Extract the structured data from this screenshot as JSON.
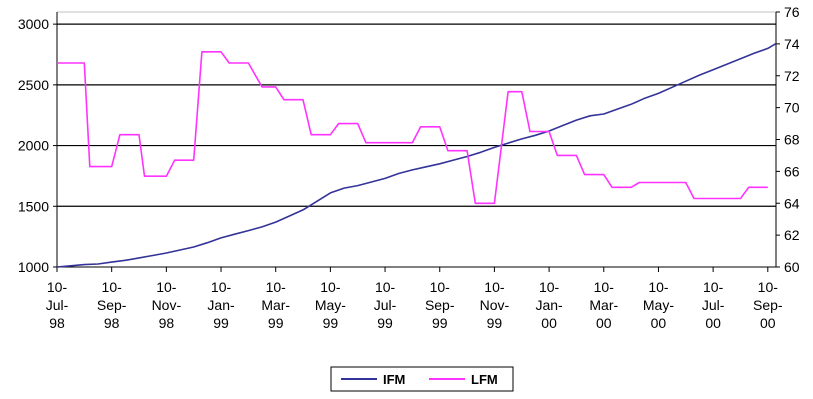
{
  "chart_data": {
    "type": "line",
    "title": "",
    "xlabel": "",
    "ylabel": "",
    "x_tick_labels": [
      [
        "10-",
        "Jul-",
        "98"
      ],
      [
        "10-",
        "Sep-",
        "98"
      ],
      [
        "10-",
        "Nov-",
        "98"
      ],
      [
        "10-",
        "Jan-",
        "99"
      ],
      [
        "10-",
        "Mar-",
        "99"
      ],
      [
        "10-",
        "May-",
        "99"
      ],
      [
        "10-",
        "Jul-",
        "99"
      ],
      [
        "10-",
        "Sep-",
        "99"
      ],
      [
        "10-",
        "Nov-",
        "99"
      ],
      [
        "10-",
        "Jan-",
        "00"
      ],
      [
        "10-",
        "Mar-",
        "00"
      ],
      [
        "10-",
        "May-",
        "00"
      ],
      [
        "10-",
        "Jul-",
        "00"
      ],
      [
        "10-",
        "Sep-",
        "00"
      ]
    ],
    "xlim": [
      0,
      26.3
    ],
    "y_left": {
      "lim": [
        1000,
        3100
      ],
      "ticks": [
        1000,
        1500,
        2000,
        2500,
        3000
      ]
    },
    "y_right": {
      "lim": [
        60,
        76
      ],
      "ticks": [
        60,
        62,
        64,
        66,
        68,
        70,
        72,
        74,
        76
      ]
    },
    "gridlines": [
      1500,
      2000,
      2500,
      3000
    ],
    "legend_position": "bottom",
    "series": [
      {
        "name": "IFM",
        "axis": "left",
        "color": "#333399",
        "x": [
          0,
          0.5,
          1,
          1.5,
          2,
          2.5,
          3,
          3.5,
          4,
          4.5,
          5,
          5.5,
          6,
          6.5,
          7,
          7.5,
          8,
          8.5,
          9,
          9.5,
          10,
          10.5,
          11,
          11.5,
          12,
          12.5,
          13,
          13.5,
          14,
          14.5,
          15,
          15.5,
          16,
          16.5,
          17,
          17.5,
          18,
          18.5,
          19,
          19.5,
          20,
          20.5,
          21,
          21.5,
          22,
          22.5,
          23,
          23.5,
          24,
          24.5,
          25,
          25.5,
          26,
          26.3
        ],
        "values": [
          1000,
          1010,
          1020,
          1025,
          1040,
          1055,
          1075,
          1095,
          1115,
          1140,
          1165,
          1200,
          1240,
          1270,
          1300,
          1330,
          1370,
          1420,
          1470,
          1540,
          1610,
          1650,
          1670,
          1700,
          1730,
          1770,
          1800,
          1825,
          1850,
          1880,
          1910,
          1945,
          1985,
          2020,
          2055,
          2085,
          2120,
          2165,
          2210,
          2245,
          2260,
          2300,
          2340,
          2390,
          2430,
          2480,
          2530,
          2580,
          2625,
          2670,
          2715,
          2760,
          2800,
          2840
        ]
      },
      {
        "name": "LFM",
        "axis": "right",
        "color": "#FF33FF",
        "x": [
          0,
          1,
          1.2,
          2,
          2.3,
          3,
          3.2,
          4,
          4.3,
          5,
          5.3,
          6,
          6.3,
          7,
          7.5,
          8,
          8.3,
          9,
          9.3,
          10,
          10.3,
          11,
          11.3,
          12,
          12.3,
          13,
          13.3,
          14,
          14.3,
          15,
          15.3,
          16,
          16.5,
          17,
          17.3,
          18,
          18.3,
          19,
          19.3,
          20,
          20.3,
          21,
          21.3,
          22,
          22.3,
          23,
          23.3,
          24,
          24.3,
          25,
          25.3,
          26
        ],
        "values": [
          72.8,
          72.8,
          66.3,
          66.3,
          68.3,
          68.3,
          65.7,
          65.7,
          66.7,
          66.7,
          73.5,
          73.5,
          72.8,
          72.8,
          71.3,
          71.3,
          70.5,
          70.5,
          68.3,
          68.3,
          69,
          69,
          67.8,
          67.8,
          67.8,
          67.8,
          68.8,
          68.8,
          67.3,
          67.3,
          64,
          64,
          71,
          71,
          68.5,
          68.5,
          67,
          67,
          65.8,
          65.8,
          65,
          65,
          65.3,
          65.3,
          65.3,
          65.3,
          64.3,
          64.3,
          64.3,
          64.3,
          65,
          65
        ]
      }
    ]
  }
}
